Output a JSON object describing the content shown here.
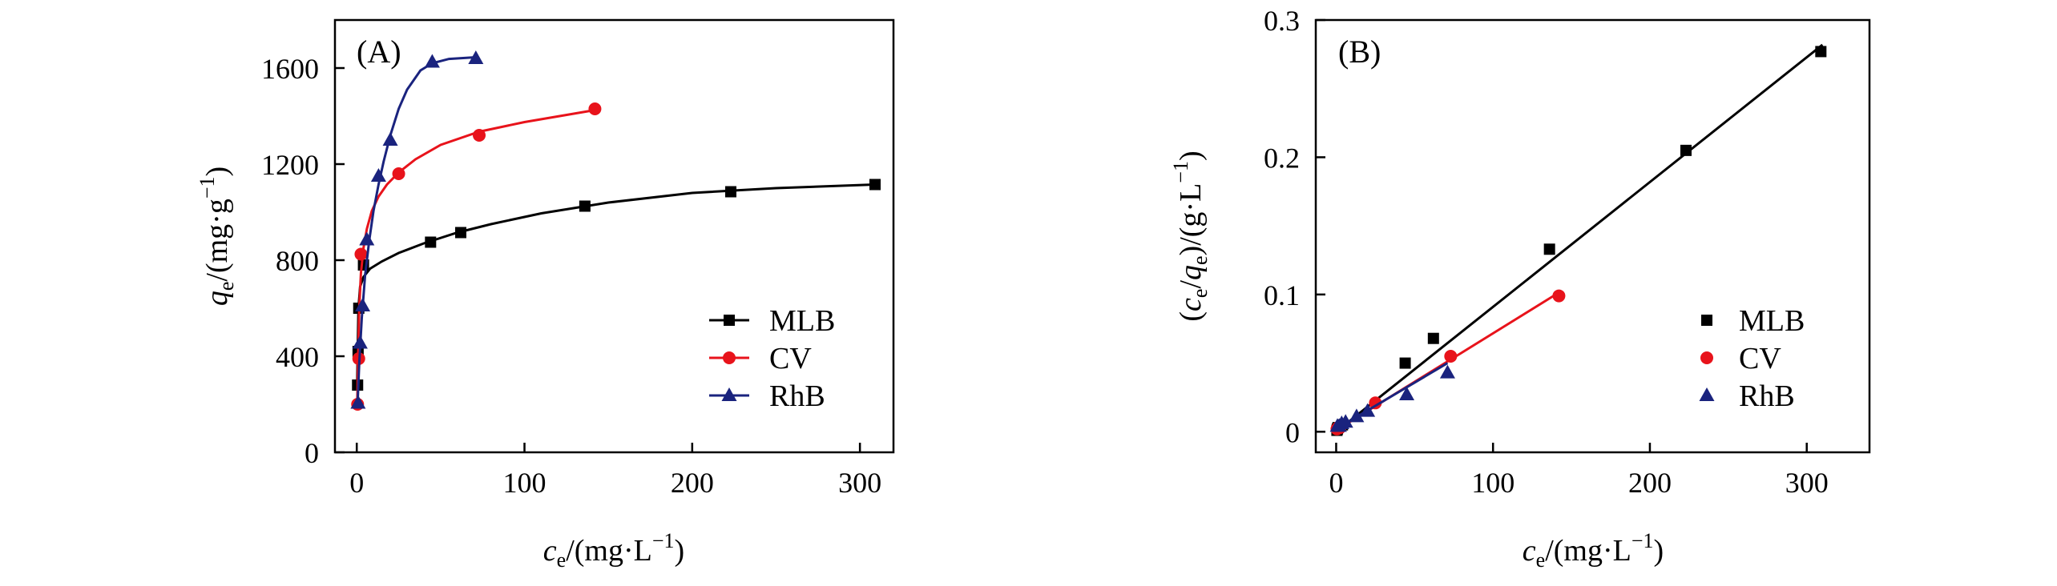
{
  "colors": {
    "MLB": "#000000",
    "CV": "#e8131b",
    "RhB": "#1a237e"
  },
  "chart_data": [
    {
      "panel": "(A)",
      "type": "scatter",
      "xlabel": {
        "main": "c",
        "sub": "e",
        "unit": "/(mg·L",
        "sup": "−1",
        "close": ")"
      },
      "ylabel": {
        "main": "q",
        "sub": "e",
        "unit": "/(mg·g",
        "sup": "−1",
        "close": ")"
      },
      "xlim": [
        -13,
        320
      ],
      "ylim": [
        0,
        1800
      ],
      "xticks": [
        0,
        100,
        200,
        300
      ],
      "yticks": [
        0,
        400,
        800,
        1200,
        1600
      ],
      "legend": "bottom-right",
      "legend_style": "line-marker",
      "series": [
        {
          "name": "MLB",
          "marker": "square",
          "x": [
            0.5,
            0.8,
            1.2,
            4,
            44,
            62,
            136,
            223,
            309
          ],
          "y": [
            280,
            420,
            600,
            780,
            875,
            915,
            1025,
            1085,
            1115
          ],
          "fit": {
            "x": [
              0.3,
              0.6,
              1,
              2,
              4,
              8,
              15,
              25,
              40,
              60,
              80,
              110,
              150,
              200,
              250,
              309
            ],
            "y": [
              300,
              450,
              600,
              690,
              730,
              765,
              795,
              830,
              870,
              915,
              950,
              995,
              1040,
              1080,
              1100,
              1115
            ]
          }
        },
        {
          "name": "CV",
          "marker": "circle",
          "x": [
            0.5,
            1.2,
            2.5,
            25,
            73,
            142
          ],
          "y": [
            200,
            390,
            825,
            1160,
            1320,
            1430
          ],
          "fit": {
            "x": [
              0.3,
              0.8,
              1.5,
              2.5,
              4,
              6,
              9,
              13,
              18,
              25,
              35,
              50,
              73,
              100,
              142
            ],
            "y": [
              200,
              400,
              600,
              745,
              850,
              930,
              1005,
              1065,
              1115,
              1165,
              1220,
              1280,
              1335,
              1375,
              1425
            ]
          }
        },
        {
          "name": "RhB",
          "marker": "triangle",
          "x": [
            0.8,
            2,
            3.5,
            6,
            13,
            20,
            45,
            71
          ],
          "y": [
            205,
            455,
            610,
            885,
            1150,
            1300,
            1625,
            1640
          ],
          "fit": {
            "x": [
              0.5,
              1.5,
              3,
              5,
              7.5,
              10,
              13,
              16,
              20,
              25,
              30,
              38,
              45,
              55,
              71
            ],
            "y": [
              205,
              370,
              560,
              740,
              885,
              1005,
              1115,
              1210,
              1320,
              1430,
              1510,
              1590,
              1620,
              1638,
              1645
            ]
          }
        }
      ]
    },
    {
      "panel": "(B)",
      "type": "scatter",
      "xlabel": {
        "main": "c",
        "sub": "e",
        "unit": "/(mg·L",
        "sup": "−1",
        "close": ")"
      },
      "ylabel": {
        "open": "(",
        "main": "c",
        "sub": "e",
        "slash": "/",
        "main2": "q",
        "sub2": "e",
        "unit": ")/(g·L",
        "sup": "−1",
        "close": ")"
      },
      "xlim": [
        -13,
        340
      ],
      "ylim": [
        -0.015,
        0.3
      ],
      "xticks": [
        0,
        100,
        200,
        300
      ],
      "yticks": [
        0,
        0.1,
        0.2,
        0.3
      ],
      "ytick_labels": [
        "0",
        "0.1",
        "0.2",
        "0.3"
      ],
      "legend": "right",
      "legend_style": "marker-only",
      "series": [
        {
          "name": "MLB",
          "marker": "square",
          "x": [
            0.5,
            0.8,
            1.2,
            4,
            44,
            62,
            136,
            223,
            309
          ],
          "y": [
            0.001,
            0.002,
            0.003,
            0.005,
            0.05,
            0.068,
            0.133,
            0.205,
            0.277
          ],
          "fit": {
            "x": [
              0,
              310
            ],
            "y": [
              0.0,
              0.282
            ]
          }
        },
        {
          "name": "CV",
          "marker": "circle",
          "x": [
            0.5,
            1.2,
            2.5,
            25,
            73,
            142
          ],
          "y": [
            0.002,
            0.003,
            0.003,
            0.021,
            0.055,
            0.099
          ],
          "fit": {
            "x": [
              0,
              140
            ],
            "y": [
              0.001,
              0.1
            ]
          }
        },
        {
          "name": "RhB",
          "marker": "triangle",
          "x": [
            0.8,
            2,
            3.5,
            6,
            13,
            20,
            45,
            71
          ],
          "y": [
            0.004,
            0.004,
            0.006,
            0.007,
            0.011,
            0.015,
            0.027,
            0.043
          ],
          "fit": {
            "x": [
              0,
              71
            ],
            "y": [
              0.002,
              0.05
            ]
          }
        }
      ]
    }
  ]
}
